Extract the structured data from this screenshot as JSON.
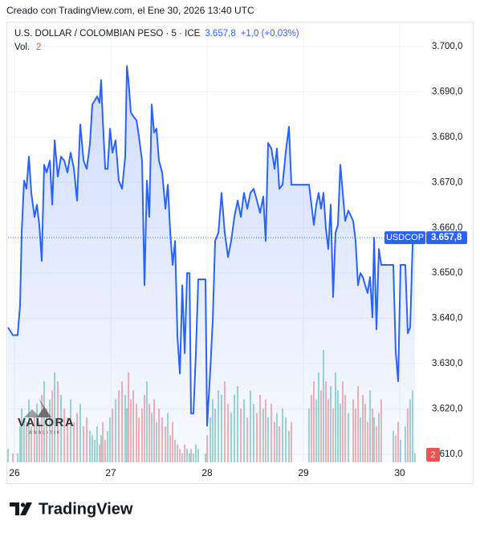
{
  "header": {
    "credit": "Creado con TradingView.com, el Ene 30, 2026 13:40 UTC"
  },
  "footer": {
    "brand": "TradingView"
  },
  "watermark": {
    "name": "VALORA",
    "tagline": "ANALITIK"
  },
  "chart_data": {
    "type": "area",
    "title": "U.S. DOLLAR / COLOMBIAN PESO · 5 · ICE",
    "last_label": "3.657,8",
    "change": "+1,0 (+0,03%)",
    "x": [
      25.933,
      25.983,
      26.033,
      26.058,
      26.075,
      26.1,
      26.125,
      26.15,
      26.175,
      26.208,
      26.233,
      26.258,
      26.283,
      26.308,
      26.333,
      26.367,
      26.392,
      26.417,
      26.45,
      26.483,
      26.517,
      26.55,
      26.583,
      26.617,
      26.65,
      26.683,
      26.717,
      26.75,
      26.783,
      26.808,
      26.833,
      26.858,
      26.883,
      26.9,
      26.917,
      26.942,
      26.967,
      26.992,
      27.017,
      27.05,
      27.083,
      27.117,
      27.15,
      27.167,
      27.183,
      27.208,
      27.233,
      27.267,
      27.292,
      27.325,
      27.35,
      27.375,
      27.4,
      27.425,
      27.45,
      27.475,
      27.5,
      27.533,
      27.567,
      27.592,
      27.617,
      27.642,
      27.667,
      27.692,
      27.717,
      27.742,
      27.767,
      27.792,
      27.817,
      27.833,
      27.858,
      27.883,
      27.908,
      27.983,
      28.0,
      28.033,
      28.058,
      28.083,
      28.117,
      28.15,
      28.183,
      28.217,
      28.25,
      28.283,
      28.317,
      28.35,
      28.383,
      28.417,
      28.45,
      28.483,
      28.517,
      28.55,
      28.583,
      28.608,
      28.633,
      28.667,
      28.7,
      28.725,
      28.75,
      28.783,
      28.817,
      28.85,
      28.875,
      29.058,
      29.083,
      29.108,
      29.133,
      29.158,
      29.183,
      29.208,
      29.233,
      29.258,
      29.283,
      29.308,
      29.333,
      29.358,
      29.383,
      29.408,
      29.433,
      29.467,
      29.517,
      29.542,
      29.567,
      29.592,
      29.617,
      29.642,
      29.667,
      29.692,
      29.717,
      29.733,
      29.758,
      29.783,
      29.808,
      29.933,
      29.958,
      29.983,
      30.008,
      30.058,
      30.083,
      30.108,
      30.133,
      30.158
    ],
    "series": [
      {
        "name": "USDCOP",
        "color": "#2962ff",
        "values": [
          3638.0,
          3636.3,
          3636.3,
          3642.9,
          3658.9,
          3670.4,
          3668.6,
          3675.7,
          3667.7,
          3662.4,
          3665.1,
          3660.6,
          3652.7,
          3673.9,
          3672.2,
          3674.8,
          3665.1,
          3679.3,
          3671.3,
          3675.7,
          3674.8,
          3672.2,
          3676.6,
          3673.0,
          3666.0,
          3682.8,
          3674.8,
          3673.0,
          3678.4,
          3687.2,
          3688.1,
          3689.0,
          3687.6,
          3692.6,
          3683.7,
          3673.0,
          3673.0,
          3681.9,
          3676.6,
          3679.3,
          3670.4,
          3668.6,
          3675.7,
          3695.7,
          3692.6,
          3685.5,
          3684.6,
          3683.7,
          3680.1,
          3674.8,
          3647.3,
          3670.4,
          3662.4,
          3687.2,
          3681.0,
          3681.9,
          3674.8,
          3672.2,
          3664.2,
          3669.5,
          3658.9,
          3651.8,
          3657.1,
          3635.8,
          3627.8,
          3647.3,
          3632.3,
          3650.0,
          3650.0,
          3619.0,
          3619.0,
          3632.3,
          3648.6,
          3648.6,
          3616.3,
          3628.7,
          3639.4,
          3657.1,
          3658.9,
          3667.7,
          3658.9,
          3653.5,
          3657.1,
          3662.4,
          3666.0,
          3662.4,
          3667.7,
          3664.2,
          3667.7,
          3668.6,
          3666.0,
          3663.3,
          3666.9,
          3657.1,
          3678.7,
          3677.5,
          3673.0,
          3677.5,
          3668.6,
          3669.5,
          3676.9,
          3682.3,
          3669.5,
          3669.5,
          3665.1,
          3660.6,
          3665.1,
          3667.7,
          3664.2,
          3667.7,
          3659.8,
          3655.3,
          3665.1,
          3644.7,
          3658.9,
          3660.6,
          3673.9,
          3667.7,
          3661.5,
          3663.8,
          3661.5,
          3657.1,
          3647.3,
          3650.0,
          3649.1,
          3647.3,
          3645.6,
          3649.1,
          3640.2,
          3657.8,
          3637.6,
          3655.3,
          3651.8,
          3651.8,
          3632.6,
          3626.1,
          3651.8,
          3651.8,
          3636.7,
          3638.0,
          3656.2,
          3657.8
        ]
      }
    ],
    "volume": {
      "name": "Vol.",
      "up_color": "#26a69a",
      "down_color": "#ef5350",
      "values": [
        3,
        2,
        2,
        8,
        12,
        10,
        9,
        14,
        8,
        10,
        13,
        9,
        15,
        18,
        12,
        14,
        16,
        20,
        18,
        15,
        12,
        10,
        14,
        9,
        11,
        13,
        8,
        10,
        7,
        6,
        5,
        8,
        4,
        6,
        9,
        5,
        7,
        10,
        12,
        14,
        16,
        18,
        15,
        12,
        20,
        14,
        16,
        13,
        10,
        12,
        15,
        18,
        13,
        11,
        14,
        9,
        12,
        10,
        8,
        11,
        6,
        9,
        5,
        4,
        3,
        2,
        4,
        3,
        2,
        3,
        2,
        4,
        3,
        2,
        6,
        10,
        14,
        12,
        16,
        15,
        18,
        13,
        11,
        15,
        17,
        12,
        14,
        10,
        16,
        13,
        11,
        15,
        12,
        14,
        10,
        13,
        9,
        11,
        8,
        12,
        10,
        7,
        9,
        12,
        15,
        18,
        14,
        20,
        16,
        25,
        18,
        14,
        17,
        12,
        20,
        16,
        13,
        18,
        15,
        11,
        14,
        12,
        17,
        10,
        15,
        13,
        9,
        16,
        12,
        10,
        8,
        11,
        14,
        7,
        6,
        9,
        5,
        8,
        12,
        14,
        16,
        2
      ]
    },
    "xlim": [
      25.933,
      30.225
    ],
    "xticks": [
      26,
      27,
      28,
      29,
      30
    ],
    "ylim": [
      3608.2,
      3705.5
    ],
    "yticks": [
      {
        "value": 3610,
        "label": "3.610,0"
      },
      {
        "value": 3620,
        "label": "3.620,0"
      },
      {
        "value": 3630,
        "label": "3.630,0"
      },
      {
        "value": 3640,
        "label": "3.640,0"
      },
      {
        "value": 3650,
        "label": "3.650,0"
      },
      {
        "value": 3660,
        "label": "3.660,0"
      },
      {
        "value": 3670,
        "label": "3.670,0"
      },
      {
        "value": 3680,
        "label": "3.680,0"
      },
      {
        "value": 3690,
        "label": "3.690,0"
      },
      {
        "value": 3700,
        "label": "3.700,0"
      }
    ],
    "grid": true
  }
}
